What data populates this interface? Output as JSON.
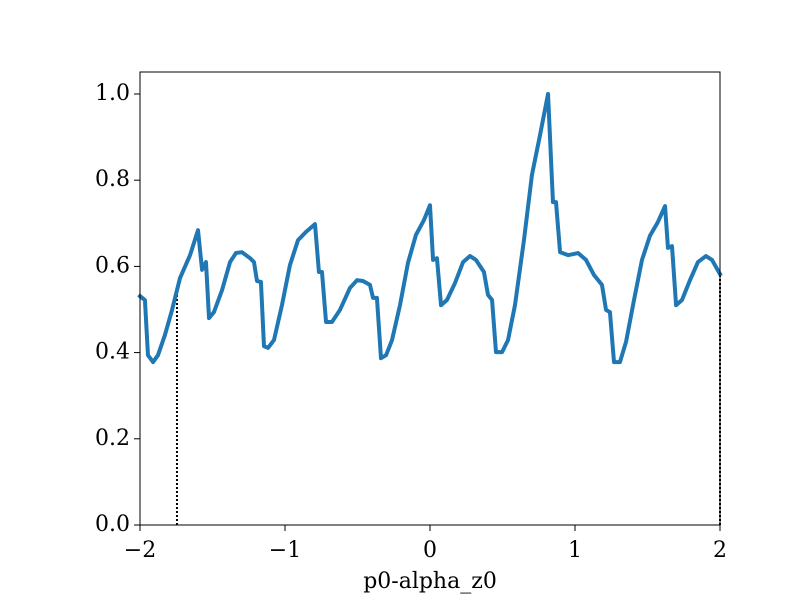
{
  "chart_data": {
    "type": "line",
    "xlabel": "p0-alpha_z0",
    "color": "#1f77b4",
    "x": [
      -2,
      -1.966,
      -1.945,
      -1.91,
      -1.876,
      -1.828,
      -1.779,
      -1.724,
      -1.655,
      -1.6,
      -1.572,
      -1.545,
      -1.524,
      -1.49,
      -1.434,
      -1.379,
      -1.338,
      -1.297,
      -1.241,
      -1.214,
      -1.193,
      -1.166,
      -1.145,
      -1.117,
      -1.076,
      -1.021,
      -0.966,
      -0.91,
      -0.855,
      -0.793,
      -0.766,
      -0.745,
      -0.717,
      -0.676,
      -0.621,
      -0.552,
      -0.503,
      -0.462,
      -0.414,
      -0.393,
      -0.366,
      -0.338,
      -0.303,
      -0.262,
      -0.207,
      -0.152,
      -0.097,
      -0.041,
      0,
      0.021,
      0.048,
      0.076,
      0.117,
      0.172,
      0.228,
      0.276,
      0.317,
      0.372,
      0.4,
      0.428,
      0.455,
      0.497,
      0.538,
      0.586,
      0.648,
      0.703,
      0.759,
      0.814,
      0.848,
      0.869,
      0.897,
      0.952,
      1.021,
      1.076,
      1.131,
      1.186,
      1.214,
      1.241,
      1.269,
      1.31,
      1.352,
      1.407,
      1.462,
      1.517,
      1.572,
      1.621,
      1.641,
      1.669,
      1.697,
      1.738,
      1.793,
      1.848,
      1.903,
      1.945,
      2
    ],
    "values": [
      0.531,
      0.522,
      0.394,
      0.378,
      0.394,
      0.441,
      0.499,
      0.573,
      0.626,
      0.684,
      0.592,
      0.61,
      0.48,
      0.494,
      0.545,
      0.61,
      0.631,
      0.633,
      0.619,
      0.61,
      0.566,
      0.564,
      0.415,
      0.411,
      0.429,
      0.51,
      0.603,
      0.661,
      0.68,
      0.698,
      0.587,
      0.587,
      0.471,
      0.471,
      0.499,
      0.55,
      0.568,
      0.566,
      0.557,
      0.527,
      0.527,
      0.387,
      0.394,
      0.429,
      0.51,
      0.608,
      0.673,
      0.708,
      0.742,
      0.615,
      0.619,
      0.51,
      0.522,
      0.561,
      0.61,
      0.624,
      0.615,
      0.587,
      0.534,
      0.522,
      0.401,
      0.401,
      0.429,
      0.51,
      0.661,
      0.812,
      0.905,
      1.0,
      0.749,
      0.749,
      0.633,
      0.626,
      0.631,
      0.615,
      0.58,
      0.557,
      0.499,
      0.494,
      0.378,
      0.378,
      0.425,
      0.522,
      0.615,
      0.671,
      0.703,
      0.74,
      0.643,
      0.647,
      0.51,
      0.522,
      0.568,
      0.61,
      0.624,
      0.615,
      0.582
    ],
    "vlines": [
      {
        "x": -1.745,
        "y": 0.55
      },
      {
        "x": 2,
        "y": 0.582
      }
    ],
    "xlim": [
      -2,
      2
    ],
    "xticks": [
      {
        "value": -2,
        "label": "−2"
      },
      {
        "value": -1,
        "label": "−1"
      },
      0,
      1,
      2
    ],
    "ylim": [
      0,
      1.051
    ],
    "yticks": [
      {
        "value": 0,
        "label": "0.0"
      },
      0.2,
      0.4,
      0.6,
      0.8,
      {
        "value": 1,
        "label": "1.0"
      }
    ]
  }
}
